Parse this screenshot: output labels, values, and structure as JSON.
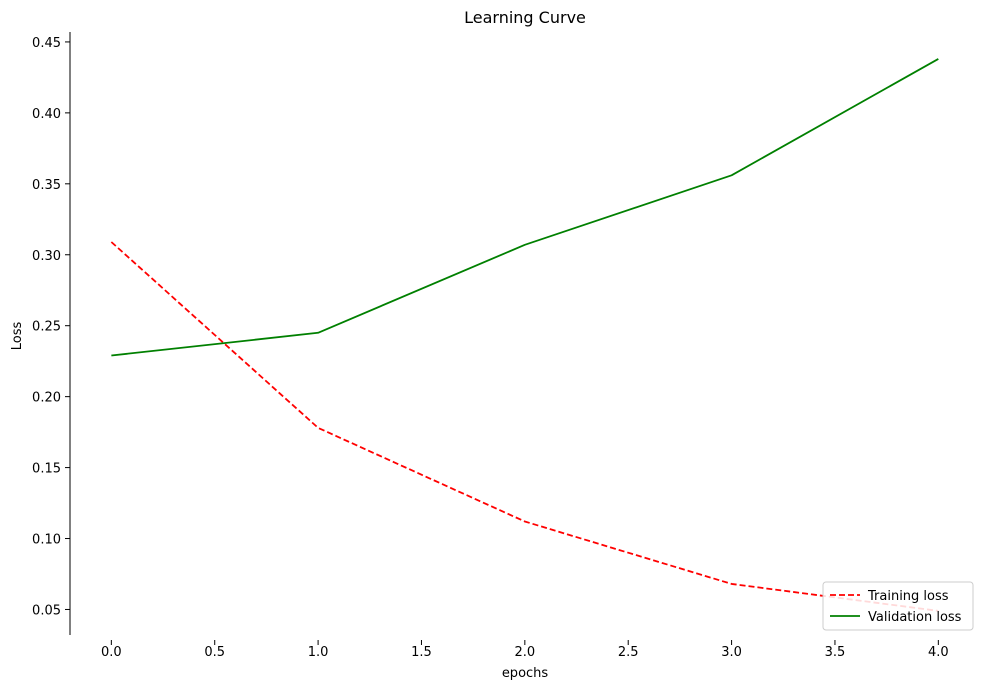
{
  "chart_data": {
    "type": "line",
    "title": "Learning Curve",
    "xlabel": "epochs",
    "ylabel": "Loss",
    "x": [
      0,
      1,
      2,
      3,
      4
    ],
    "xlim": [
      -0.2,
      4.1
    ],
    "ylim": [
      0.032,
      0.457
    ],
    "xticks": [
      0.0,
      0.5,
      1.0,
      1.5,
      2.0,
      2.5,
      3.0,
      3.5,
      4.0
    ],
    "xtick_labels": [
      "0.0",
      "0.5",
      "1.0",
      "1.5",
      "2.0",
      "2.5",
      "3.0",
      "3.5",
      "4.0"
    ],
    "yticks": [
      0.05,
      0.1,
      0.15,
      0.2,
      0.25,
      0.3,
      0.35,
      0.4,
      0.45
    ],
    "ytick_labels": [
      "0.05",
      "0.10",
      "0.15",
      "0.20",
      "0.25",
      "0.30",
      "0.35",
      "0.40",
      "0.45"
    ],
    "grid": false,
    "legend_position": "bottom-right",
    "series": [
      {
        "name": "Training loss",
        "values": [
          0.309,
          0.178,
          0.112,
          0.068,
          0.049
        ],
        "color": "#ff0000",
        "style": "dashed"
      },
      {
        "name": "Validation loss",
        "values": [
          0.229,
          0.245,
          0.307,
          0.356,
          0.438
        ],
        "color": "#008000",
        "style": "solid"
      }
    ]
  }
}
